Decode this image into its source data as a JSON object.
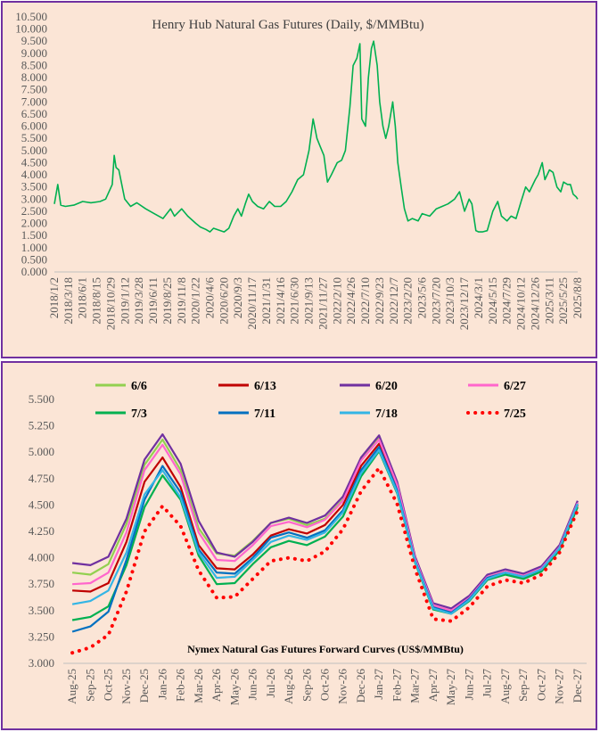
{
  "chart_data": [
    {
      "type": "line",
      "title": "Henry Hub Natural Gas Futures (Daily, $/MMBtu)",
      "ylim": [
        0,
        10.5
      ],
      "yticks": [
        "0.000",
        "0.500",
        "1.000",
        "1.500",
        "2.000",
        "2.500",
        "3.000",
        "3.500",
        "4.000",
        "4.500",
        "5.000",
        "5.500",
        "6.000",
        "6.500",
        "7.000",
        "7.500",
        "8.000",
        "8.500",
        "9.000",
        "9.500",
        "10.000",
        "10.500"
      ],
      "x_tick_labels": [
        "2018/1/2",
        "2018/3/18",
        "2018/6/1",
        "2018/8/15",
        "2018/10/29",
        "2019/1/12",
        "2019/3/28",
        "2019/6/11",
        "2019/8/25",
        "2019/11/8",
        "2020/1/22",
        "2020/4/6",
        "2020/6/20",
        "2020/9/3",
        "2020/11/17",
        "2021/1/31",
        "2021/4/16",
        "2021/6/30",
        "2021/9/13",
        "2021/11/27",
        "2022/2/10",
        "2022/4/26",
        "2022/7/10",
        "2022/9/23",
        "2022/12/7",
        "2023/2/20",
        "2023/5/6",
        "2023/7/20",
        "2023/10/3",
        "2023/12/17",
        "2024/3/1",
        "2024/5/15",
        "2024/7/29",
        "2024/10/12",
        "2024/12/26",
        "2025/3/11",
        "2025/5/25",
        "2025/8/8"
      ],
      "series": [
        {
          "color": "#00b050",
          "x": [
            "2018/1/2",
            "2018/1/20",
            "2018/2/5",
            "2018/3/1",
            "2018/4/15",
            "2018/6/1",
            "2018/7/15",
            "2018/9/1",
            "2018/10/1",
            "2018/11/5",
            "2018/11/15",
            "2018/11/25",
            "2018/12/10",
            "2019/1/10",
            "2019/2/10",
            "2019/3/15",
            "2019/5/1",
            "2019/6/15",
            "2019/8/1",
            "2019/9/10",
            "2019/10/1",
            "2019/11/8",
            "2019/12/10",
            "2020/1/22",
            "2020/2/15",
            "2020/3/15",
            "2020/4/6",
            "2020/4/25",
            "2020/6/1",
            "2020/6/20",
            "2020/7/15",
            "2020/8/10",
            "2020/9/1",
            "2020/9/20",
            "2020/10/10",
            "2020/10/28",
            "2020/11/17",
            "2020/12/15",
            "2021/1/15",
            "2021/2/15",
            "2021/3/15",
            "2021/4/16",
            "2021/5/15",
            "2021/6/15",
            "2021/7/15",
            "2021/8/15",
            "2021/9/13",
            "2021/10/5",
            "2021/10/25",
            "2021/11/10",
            "2021/12/1",
            "2021/12/20",
            "2022/1/10",
            "2022/2/10",
            "2022/3/5",
            "2022/3/25",
            "2022/4/18",
            "2022/5/5",
            "2022/5/25",
            "2022/6/10",
            "2022/6/20",
            "2022/7/10",
            "2022/7/25",
            "2022/8/10",
            "2022/8/22",
            "2022/9/10",
            "2022/9/23",
            "2022/10/10",
            "2022/10/25",
            "2022/11/10",
            "2022/12/1",
            "2022/12/15",
            "2022/12/28",
            "2023/1/15",
            "2023/2/1",
            "2023/2/20",
            "2023/3/15",
            "2023/4/15",
            "2023/5/6",
            "2023/6/15",
            "2023/7/20",
            "2023/8/20",
            "2023/9/20",
            "2023/10/25",
            "2023/11/20",
            "2023/12/17",
            "2024/1/10",
            "2024/1/25",
            "2024/2/15",
            "2024/3/1",
            "2024/3/20",
            "2024/4/15",
            "2024/5/15",
            "2024/6/10",
            "2024/6/30",
            "2024/7/29",
            "2024/8/20",
            "2024/9/15",
            "2024/10/12",
            "2024/11/5",
            "2024/11/25",
            "2024/12/26",
            "2025/1/10",
            "2025/2/1",
            "2025/2/15",
            "2025/3/11",
            "2025/3/30",
            "2025/4/20",
            "2025/5/10",
            "2025/5/25",
            "2025/6/15",
            "2025/6/30",
            "2025/7/15",
            "2025/7/30",
            "2025/8/8"
          ],
          "values": [
            2.8,
            3.6,
            2.75,
            2.7,
            2.75,
            2.9,
            2.85,
            2.9,
            3.0,
            3.6,
            4.8,
            4.3,
            4.2,
            3.0,
            2.7,
            2.85,
            2.6,
            2.4,
            2.2,
            2.6,
            2.3,
            2.6,
            2.3,
            2.0,
            1.85,
            1.75,
            1.65,
            1.8,
            1.7,
            1.65,
            1.8,
            2.3,
            2.6,
            2.3,
            2.8,
            3.2,
            2.9,
            2.7,
            2.6,
            2.9,
            2.7,
            2.7,
            2.9,
            3.3,
            3.8,
            4.0,
            5.0,
            6.3,
            5.5,
            5.2,
            4.8,
            3.7,
            4.0,
            4.5,
            4.6,
            5.0,
            6.8,
            8.5,
            8.8,
            9.4,
            6.3,
            6.0,
            8.0,
            9.2,
            9.5,
            8.5,
            7.0,
            6.0,
            5.5,
            6.0,
            7.0,
            6.0,
            4.5,
            3.5,
            2.6,
            2.1,
            2.2,
            2.1,
            2.4,
            2.3,
            2.6,
            2.7,
            2.8,
            3.0,
            3.3,
            2.5,
            3.0,
            2.8,
            1.7,
            1.65,
            1.65,
            1.7,
            2.5,
            2.9,
            2.3,
            2.1,
            2.3,
            2.2,
            2.9,
            3.5,
            3.3,
            3.8,
            4.0,
            4.5,
            3.8,
            4.2,
            4.1,
            3.5,
            3.3,
            3.7,
            3.6,
            3.6,
            3.2,
            3.1,
            3.0
          ]
        }
      ]
    },
    {
      "type": "line",
      "title": "Nymex Natural Gas Futures Forward Curves (US$/MMBtu)",
      "ylim": [
        3.0,
        5.5
      ],
      "yticks": [
        "3.000",
        "3.250",
        "3.500",
        "3.750",
        "4.000",
        "4.250",
        "4.500",
        "4.750",
        "5.000",
        "5.250",
        "5.500"
      ],
      "categories": [
        "Aug-25",
        "Sep-25",
        "Oct-25",
        "Nov-25",
        "Dec-25",
        "Jan-26",
        "Feb-26",
        "Mar-26",
        "Apr-26",
        "May-26",
        "Jun-26",
        "Jul-26",
        "Aug-26",
        "Sep-26",
        "Oct-26",
        "Nov-26",
        "Dec-26",
        "Jan-27",
        "Feb-27",
        "Mar-27",
        "Apr-27",
        "May-27",
        "Jun-27",
        "Jul-27",
        "Aug-27",
        "Sep-27",
        "Oct-27",
        "Nov-27",
        "Dec-27"
      ],
      "series": [
        {
          "name": "6/6",
          "color": "#92d050",
          "style": "solid",
          "values": [
            3.86,
            3.84,
            3.94,
            4.32,
            4.88,
            5.12,
            4.83,
            4.28,
            4.04,
            4.02,
            4.16,
            4.33,
            4.37,
            4.31,
            4.37,
            4.55,
            4.93,
            5.14,
            4.7,
            4.0,
            3.55,
            3.5,
            3.62,
            3.82,
            3.87,
            3.83,
            3.9,
            4.1,
            4.52
          ]
        },
        {
          "name": "6/13",
          "color": "#c00000",
          "style": "solid",
          "values": [
            3.69,
            3.68,
            3.76,
            4.15,
            4.72,
            4.95,
            4.67,
            4.12,
            3.9,
            3.89,
            4.03,
            4.21,
            4.27,
            4.23,
            4.31,
            4.5,
            4.87,
            5.08,
            4.66,
            3.98,
            3.54,
            3.49,
            3.61,
            3.81,
            3.86,
            3.82,
            3.88,
            4.08,
            4.5
          ]
        },
        {
          "name": "6/20",
          "color": "#7030a0",
          "style": "solid",
          "values": [
            3.95,
            3.93,
            4.01,
            4.37,
            4.93,
            5.17,
            4.89,
            4.35,
            4.05,
            4.01,
            4.15,
            4.33,
            4.38,
            4.33,
            4.4,
            4.58,
            4.95,
            5.16,
            4.72,
            4.01,
            3.57,
            3.52,
            3.64,
            3.84,
            3.89,
            3.85,
            3.92,
            4.12,
            4.54
          ]
        },
        {
          "name": "6/27",
          "color": "#ff66cc",
          "style": "solid",
          "values": [
            3.75,
            3.76,
            3.86,
            4.24,
            4.83,
            5.07,
            4.79,
            4.24,
            3.98,
            3.97,
            4.12,
            4.3,
            4.34,
            4.29,
            4.36,
            4.54,
            4.92,
            5.12,
            4.69,
            3.99,
            3.55,
            3.5,
            3.62,
            3.82,
            3.87,
            3.83,
            3.9,
            4.1,
            4.52
          ]
        },
        {
          "name": "7/3",
          "color": "#00b050",
          "style": "solid",
          "values": [
            3.41,
            3.44,
            3.54,
            3.93,
            4.48,
            4.78,
            4.55,
            4.02,
            3.75,
            3.76,
            3.94,
            4.1,
            4.16,
            4.12,
            4.2,
            4.39,
            4.77,
            5.01,
            4.61,
            3.95,
            3.51,
            3.47,
            3.59,
            3.79,
            3.84,
            3.8,
            3.87,
            4.07,
            4.48
          ]
        },
        {
          "name": "7/11",
          "color": "#0070c0",
          "style": "solid",
          "values": [
            3.3,
            3.35,
            3.49,
            3.98,
            4.55,
            4.87,
            4.62,
            4.08,
            3.86,
            3.85,
            4.0,
            4.19,
            4.24,
            4.19,
            4.26,
            4.45,
            4.83,
            5.05,
            4.64,
            3.97,
            3.53,
            3.48,
            3.61,
            3.81,
            3.86,
            3.82,
            3.89,
            4.09,
            4.51
          ]
        },
        {
          "name": "7/18",
          "color": "#33b5e5",
          "style": "solid",
          "values": [
            3.56,
            3.59,
            3.69,
            4.05,
            4.6,
            4.83,
            4.57,
            4.05,
            3.81,
            3.82,
            3.98,
            4.15,
            4.21,
            4.17,
            4.24,
            4.43,
            4.8,
            5.02,
            4.62,
            3.96,
            3.52,
            3.47,
            3.6,
            3.8,
            3.86,
            3.82,
            3.89,
            4.09,
            4.51
          ]
        },
        {
          "name": "7/25",
          "color": "#ff0000",
          "style": "dotted",
          "values": [
            3.1,
            3.15,
            3.27,
            3.68,
            4.25,
            4.49,
            4.3,
            3.88,
            3.62,
            3.63,
            3.8,
            3.97,
            4.0,
            3.97,
            4.06,
            4.27,
            4.63,
            4.85,
            4.51,
            3.89,
            3.42,
            3.4,
            3.53,
            3.73,
            3.79,
            3.76,
            3.84,
            4.05,
            4.45
          ]
        }
      ]
    }
  ]
}
